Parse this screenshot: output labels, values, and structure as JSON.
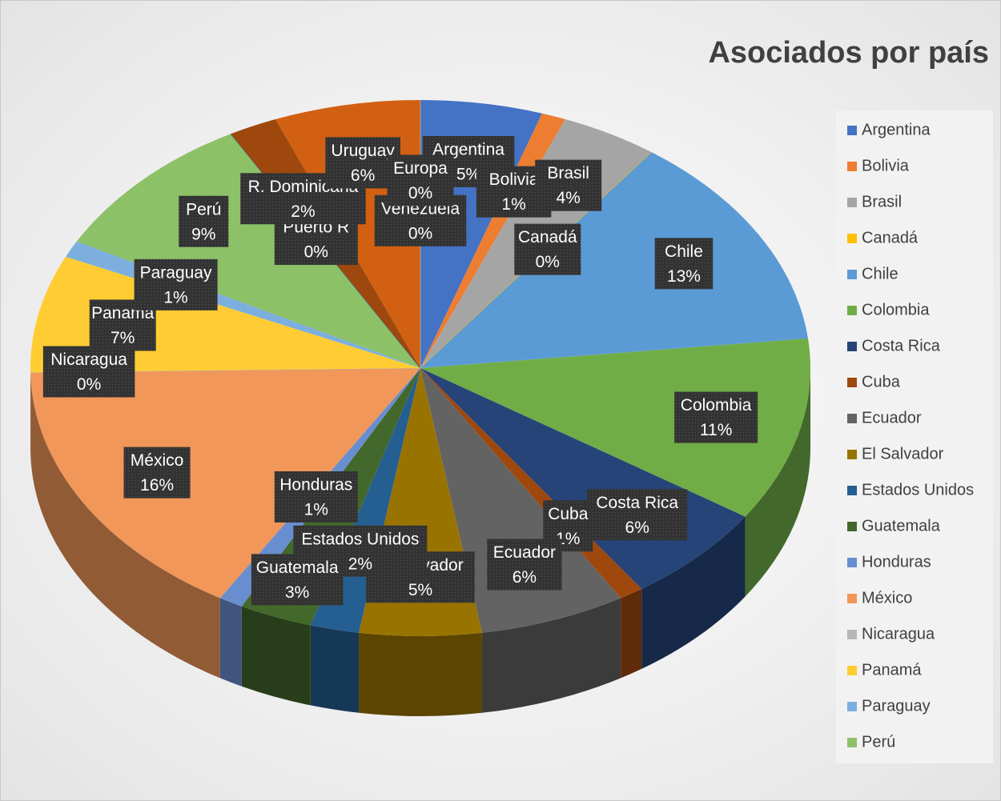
{
  "chart_data": {
    "type": "pie3d",
    "title": "Asociados por país",
    "categories": [
      "Argentina",
      "Bolivia",
      "Brasil",
      "Canadá",
      "Chile",
      "Colombia",
      "Costa Rica",
      "Cuba",
      "Ecuador",
      "El Salvador",
      "Estados Unidos",
      "Guatemala",
      "Honduras",
      "México",
      "Nicaragua",
      "Panamá",
      "Paraguay",
      "Perú",
      "Puerto R",
      "R. Dominicana",
      "Uruguay",
      "Venezuela",
      "Europa"
    ],
    "values": [
      5,
      1,
      4,
      0,
      13,
      11,
      6,
      1,
      6,
      5,
      2,
      3,
      1,
      16,
      0,
      7,
      1,
      9,
      0,
      2,
      6,
      0,
      0
    ],
    "value_labels": [
      "5%",
      "1%",
      "4%",
      "0%",
      "13%",
      "11%",
      "6%",
      "1%",
      "6%",
      "5%",
      "2%",
      "3%",
      "1%",
      "16%",
      "0%",
      "7%",
      "1%",
      "9%",
      "0%",
      "2%",
      "6%",
      "0%",
      "0%"
    ],
    "colors": [
      "#4472C4",
      "#ED7D31",
      "#A5A5A5",
      "#FFC000",
      "#5B9BD5",
      "#70AD47",
      "#264478",
      "#9E480E",
      "#636363",
      "#997300",
      "#255E91",
      "#43682B",
      "#698ED0",
      "#F1975A",
      "#B7B7B7",
      "#FFCD33",
      "#7CAFDD",
      "#8CC168",
      "#335AA1",
      "#9E480E",
      "#D26012",
      "#BF9000",
      "#A5A5A5"
    ],
    "legend": "right"
  }
}
